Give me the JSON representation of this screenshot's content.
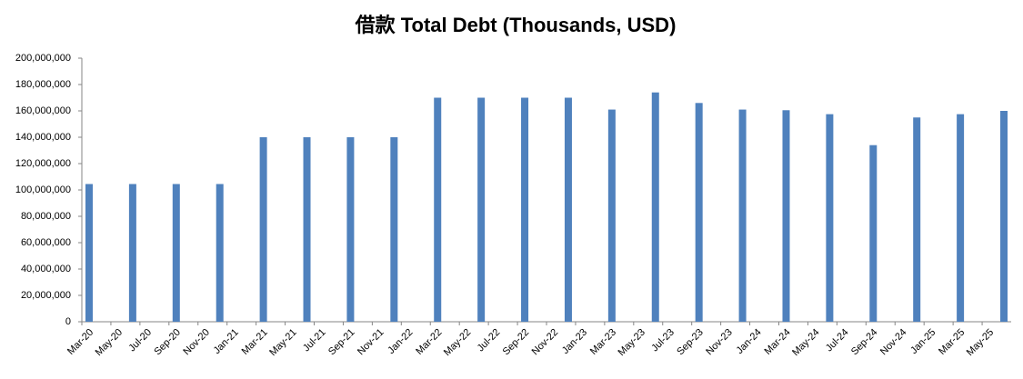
{
  "chart_data": {
    "type": "bar",
    "title": "借款 Total Debt (Thousands, USD)",
    "categories": [
      "Mar-20",
      null,
      "May-20",
      null,
      "Jul-20",
      null,
      "Sep-20",
      null,
      "Nov-20",
      null,
      "Jan-21",
      null,
      "Mar-21",
      null,
      "May-21",
      null,
      "Jul-21",
      null,
      "Sep-21",
      null,
      "Nov-21",
      null,
      "Jan-22",
      null,
      "Mar-22",
      null,
      "May-22",
      null,
      "Jul-22",
      null,
      "Sep-22",
      null,
      "Nov-22",
      null,
      "Jan-23",
      null,
      "Mar-23",
      null,
      "May-23",
      null,
      "Jul-23",
      null,
      "Sep-23",
      null,
      "Nov-23",
      null,
      "Jan-24",
      null,
      "Mar-24",
      null,
      "May-24",
      null,
      "Jul-24",
      null,
      "Sep-24",
      null,
      "Nov-24",
      null,
      "Jan-25",
      null,
      "Mar-25",
      null,
      "May-25",
      null
    ],
    "values": [
      104500000,
      null,
      null,
      104500000,
      null,
      null,
      104500000,
      null,
      null,
      104500000,
      null,
      null,
      140000000,
      null,
      null,
      140000000,
      null,
      null,
      140000000,
      null,
      null,
      140000000,
      null,
      null,
      170000000,
      null,
      null,
      170000000,
      null,
      null,
      170000000,
      null,
      null,
      170000000,
      null,
      null,
      161000000,
      null,
      null,
      174000000,
      null,
      null,
      166000000,
      null,
      null,
      161000000,
      null,
      null,
      160500000,
      null,
      null,
      157500000,
      null,
      null,
      134000000,
      null,
      null,
      155000000,
      null,
      null,
      157500000,
      null,
      null,
      160000000
    ],
    "color": "#4f81bd",
    "ylim": [
      0,
      200000000
    ],
    "yticks": [
      0,
      {
        "value": 20000000,
        "label": "20,000,000"
      },
      {
        "value": 40000000,
        "label": "40,000,000"
      },
      {
        "value": 60000000,
        "label": "60,000,000"
      },
      {
        "value": 80000000,
        "label": "80,000,000"
      },
      {
        "value": 100000000,
        "label": "100,000,000"
      },
      {
        "value": 120000000,
        "label": "120,000,000"
      },
      {
        "value": 140000000,
        "label": "140,000,000"
      },
      {
        "value": 160000000,
        "label": "160,000,000"
      },
      {
        "value": 180000000,
        "label": "180,000,000"
      },
      {
        "value": 200000000,
        "label": "200,000,000"
      }
    ],
    "grid": false
  }
}
